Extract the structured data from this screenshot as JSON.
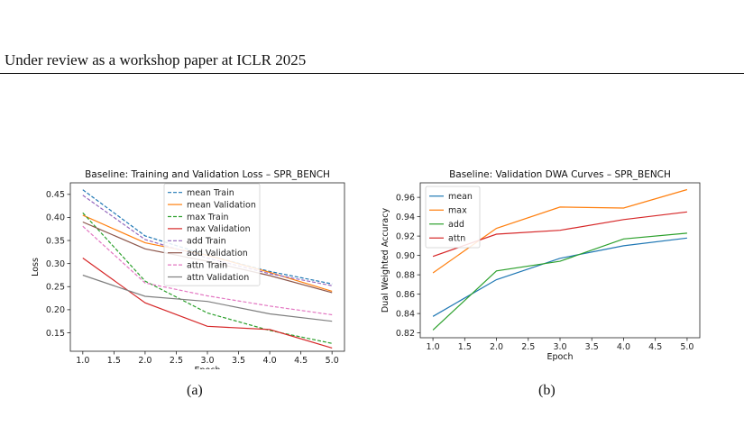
{
  "header": {
    "text": "Under review as a workshop paper at ICLR 2025"
  },
  "captions": {
    "a": "(a)",
    "b": "(b)"
  },
  "bottom_text": "",
  "chart_data": [
    {
      "type": "line",
      "title": "Baseline: Training and Validation Loss – SPR_BENCH",
      "xlabel": "Epoch",
      "ylabel": "Loss",
      "x": [
        1.0,
        2.0,
        3.0,
        4.0,
        5.0
      ],
      "xlim": [
        0.8,
        5.2
      ],
      "ylim": [
        0.11,
        0.475
      ],
      "xticks": [
        "1.0",
        "1.5",
        "2.0",
        "2.5",
        "3.0",
        "3.5",
        "4.0",
        "4.5",
        "5.0"
      ],
      "yticks": [
        "0.15",
        "0.20",
        "0.25",
        "0.30",
        "0.35",
        "0.40",
        "0.45"
      ],
      "grid": false,
      "legend_position": "top-center",
      "series": [
        {
          "name": "mean Train",
          "color": "#1f77b4",
          "dash": true,
          "values": [
            0.46,
            0.36,
            0.318,
            0.283,
            0.256
          ]
        },
        {
          "name": "mean Validation",
          "color": "#ff7f0e",
          "dash": false,
          "values": [
            0.405,
            0.345,
            0.318,
            0.281,
            0.24
          ]
        },
        {
          "name": "max Train",
          "color": "#2ca02c",
          "dash": true,
          "values": [
            0.41,
            0.262,
            0.193,
            0.155,
            0.127
          ]
        },
        {
          "name": "max Validation",
          "color": "#d62728",
          "dash": false,
          "values": [
            0.312,
            0.215,
            0.164,
            0.157,
            0.117
          ]
        },
        {
          "name": "add Train",
          "color": "#9467bd",
          "dash": true,
          "values": [
            0.448,
            0.352,
            0.312,
            0.278,
            0.252
          ]
        },
        {
          "name": "add Validation",
          "color": "#8c564b",
          "dash": false,
          "values": [
            0.39,
            0.332,
            0.305,
            0.274,
            0.237
          ]
        },
        {
          "name": "attn Train",
          "color": "#e377c2",
          "dash": true,
          "values": [
            0.381,
            0.258,
            0.23,
            0.208,
            0.189
          ]
        },
        {
          "name": "attn Validation",
          "color": "#7f7f7f",
          "dash": false,
          "values": [
            0.275,
            0.229,
            0.218,
            0.191,
            0.175
          ]
        }
      ]
    },
    {
      "type": "line",
      "title": "Baseline: Validation DWA Curves – SPR_BENCH",
      "xlabel": "Epoch",
      "ylabel": "Dual Weighted Accuracy",
      "x": [
        1.0,
        2.0,
        3.0,
        4.0,
        5.0
      ],
      "xlim": [
        0.8,
        5.2
      ],
      "ylim": [
        0.815,
        0.975
      ],
      "xticks": [
        "1.0",
        "1.5",
        "2.0",
        "2.5",
        "3.0",
        "3.5",
        "4.0",
        "4.5",
        "5.0"
      ],
      "yticks": [
        "0.82",
        "0.84",
        "0.86",
        "0.88",
        "0.90",
        "0.92",
        "0.94",
        "0.96"
      ],
      "grid": false,
      "legend_position": "top-left",
      "series": [
        {
          "name": "mean",
          "color": "#1f77b4",
          "dash": false,
          "values": [
            0.837,
            0.875,
            0.897,
            0.91,
            0.918
          ]
        },
        {
          "name": "max",
          "color": "#ff7f0e",
          "dash": false,
          "values": [
            0.882,
            0.928,
            0.95,
            0.949,
            0.968
          ]
        },
        {
          "name": "add",
          "color": "#2ca02c",
          "dash": false,
          "values": [
            0.823,
            0.884,
            0.894,
            0.917,
            0.923
          ]
        },
        {
          "name": "attn",
          "color": "#d62728",
          "dash": false,
          "values": [
            0.899,
            0.922,
            0.926,
            0.937,
            0.945
          ]
        }
      ]
    }
  ]
}
